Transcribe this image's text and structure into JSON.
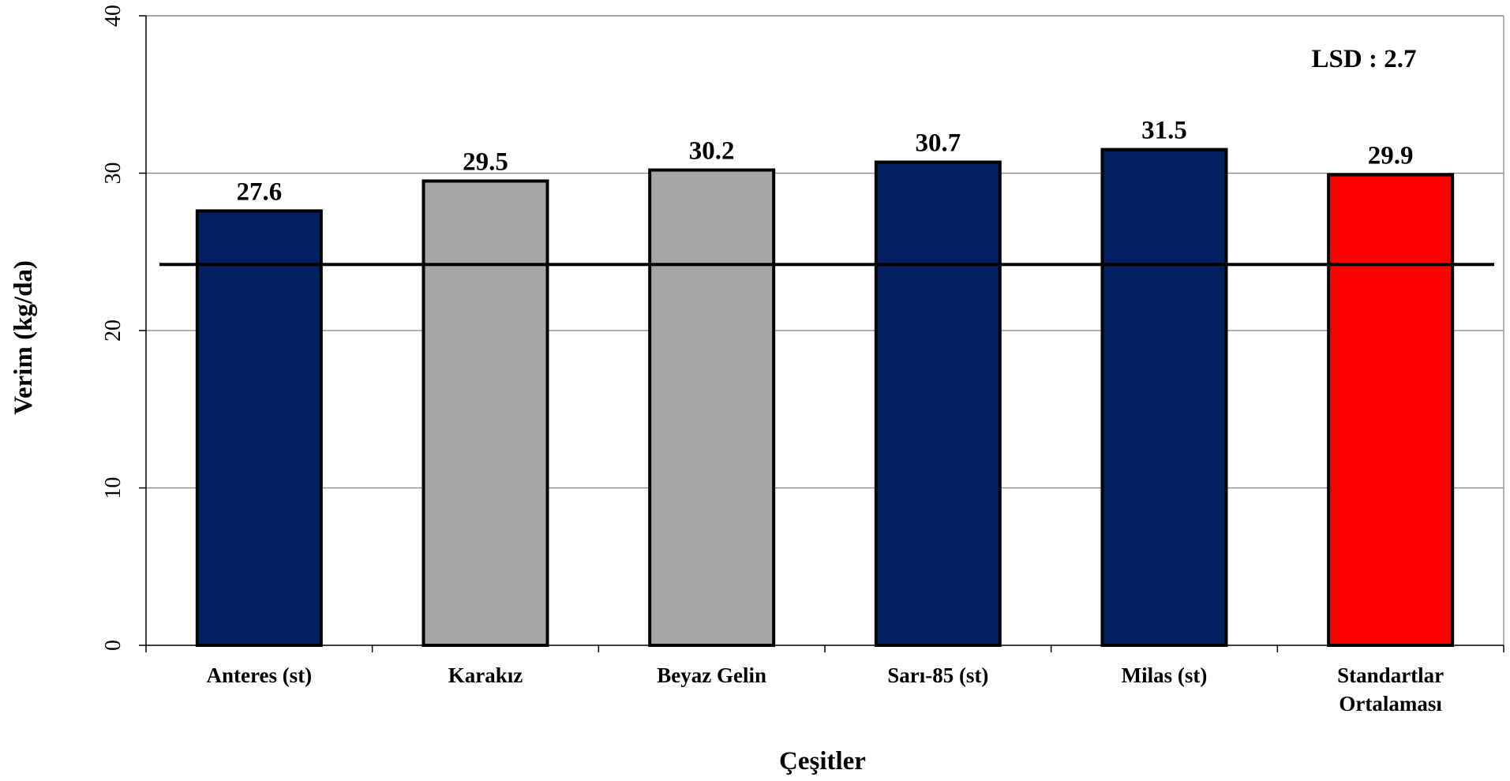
{
  "chart_data": {
    "type": "bar",
    "categories": [
      [
        "Anteres (st)"
      ],
      [
        "Karakız"
      ],
      [
        "Beyaz Gelin"
      ],
      [
        "Sarı-85 (st)"
      ],
      [
        "Milas (st)"
      ],
      [
        "Standartlar",
        "Ortalaması"
      ]
    ],
    "values": [
      27.6,
      29.5,
      30.2,
      30.7,
      31.5,
      29.9
    ],
    "data_labels": [
      "27.6",
      "29.5",
      "30.2",
      "30.7",
      "31.5",
      "29.9"
    ],
    "bar_colors": [
      "#002060",
      "#a6a6a6",
      "#a6a6a6",
      "#002060",
      "#002060",
      "#ff0000"
    ],
    "bar_outline_color": "#000000",
    "xlabel": "Çeşitler",
    "ylabel": "Verim (kg/da)",
    "ylim": [
      0,
      40
    ],
    "yticks": [
      0,
      10,
      20,
      30,
      40
    ],
    "ytick_labels": [
      "0",
      "10",
      "20",
      "30",
      "40"
    ],
    "grid": true,
    "reference_line": {
      "value": 24.2
    },
    "annotation": "LSD : 2.7"
  }
}
